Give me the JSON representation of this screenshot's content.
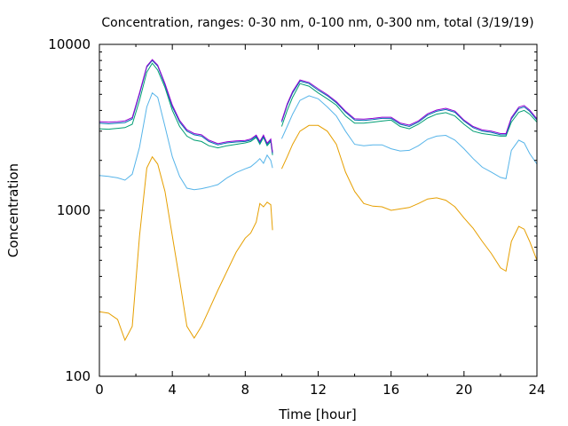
{
  "chart_data": {
    "type": "line",
    "title": "Concentration, ranges: 0-30 nm, 0-100 nm, 0-300 nm, total (3/19/19)",
    "xlabel": "Time [hour]",
    "ylabel": "Concentration",
    "xlim": [
      0,
      24
    ],
    "ylim": [
      100,
      10000
    ],
    "yscale": "log",
    "xticks": [
      "0",
      "4",
      "8",
      "12",
      "16",
      "20",
      "24"
    ],
    "yticks": [
      "100",
      "1000",
      "10000"
    ],
    "grid": false,
    "legend": "none",
    "series": [
      {
        "color": "#e69f00",
        "x": [
          0,
          0.5,
          1,
          1.4,
          1.8,
          2.2,
          2.6,
          2.9,
          3.2,
          3.6,
          4,
          4.4,
          4.8,
          5.2,
          5.6,
          6,
          6.5,
          7,
          7.5,
          8,
          8.3,
          8.6,
          8.8,
          9,
          9.2,
          9.4,
          9.5,
          null,
          10,
          10.3,
          10.6,
          11,
          11.5,
          12,
          12.5,
          13,
          13.5,
          14,
          14.5,
          15,
          15.5,
          16,
          16.5,
          17,
          17.5,
          18,
          18.5,
          19,
          19.5,
          20,
          20.5,
          21,
          21.5,
          22,
          22.3,
          22.6,
          23,
          23.3,
          23.6,
          24
        ],
        "y": [
          245,
          240,
          220,
          165,
          200,
          700,
          1800,
          2100,
          1900,
          1300,
          700,
          380,
          200,
          170,
          200,
          250,
          330,
          430,
          560,
          680,
          730,
          850,
          1100,
          1050,
          1120,
          1080,
          760,
          null,
          1780,
          2100,
          2500,
          3000,
          3250,
          3250,
          3000,
          2500,
          1700,
          1300,
          1100,
          1060,
          1050,
          1000,
          1020,
          1040,
          1100,
          1170,
          1190,
          1150,
          1050,
          900,
          780,
          650,
          550,
          450,
          430,
          650,
          800,
          770,
          650,
          500
        ]
      },
      {
        "color": "#56b4e9",
        "x": [
          0,
          0.5,
          1,
          1.4,
          1.8,
          2.2,
          2.6,
          2.9,
          3.2,
          3.6,
          4,
          4.4,
          4.8,
          5.2,
          5.6,
          6,
          6.5,
          7,
          7.5,
          8,
          8.3,
          8.6,
          8.8,
          9,
          9.2,
          9.4,
          9.5,
          null,
          10,
          10.3,
          10.6,
          11,
          11.5,
          12,
          12.5,
          13,
          13.5,
          14,
          14.5,
          15,
          15.5,
          16,
          16.5,
          17,
          17.5,
          18,
          18.5,
          19,
          19.5,
          20,
          20.5,
          21,
          21.5,
          22,
          22.3,
          22.6,
          23,
          23.3,
          23.6,
          24
        ],
        "y": [
          1620,
          1600,
          1570,
          1520,
          1650,
          2400,
          4200,
          5100,
          4800,
          3200,
          2100,
          1600,
          1360,
          1330,
          1350,
          1380,
          1430,
          1570,
          1690,
          1780,
          1830,
          1950,
          2050,
          1920,
          2150,
          2000,
          1800,
          null,
          2700,
          3200,
          3800,
          4600,
          4900,
          4700,
          4200,
          3700,
          3000,
          2500,
          2450,
          2480,
          2480,
          2350,
          2280,
          2300,
          2450,
          2680,
          2800,
          2830,
          2650,
          2350,
          2050,
          1820,
          1700,
          1580,
          1550,
          2300,
          2650,
          2550,
          2200,
          1900
        ]
      },
      {
        "color": "#009e73",
        "x": [
          0,
          0.5,
          1,
          1.4,
          1.8,
          2.2,
          2.6,
          2.9,
          3.2,
          3.6,
          4,
          4.4,
          4.8,
          5.2,
          5.6,
          6,
          6.5,
          7,
          7.5,
          8,
          8.3,
          8.6,
          8.8,
          9,
          9.2,
          9.4,
          9.5,
          null,
          10,
          10.3,
          10.6,
          11,
          11.5,
          12,
          12.5,
          13,
          13.5,
          14,
          14.5,
          15,
          15.5,
          16,
          16.5,
          17,
          17.5,
          18,
          18.5,
          19,
          19.5,
          20,
          20.5,
          21,
          21.5,
          22,
          22.3,
          22.6,
          23,
          23.3,
          23.6,
          24
        ],
        "y": [
          3100,
          3080,
          3120,
          3150,
          3300,
          4600,
          6800,
          7700,
          7000,
          5500,
          4000,
          3200,
          2800,
          2650,
          2600,
          2450,
          2380,
          2450,
          2500,
          2550,
          2600,
          2750,
          2500,
          2750,
          2450,
          2600,
          2150,
          null,
          3200,
          4000,
          4800,
          5800,
          5600,
          5100,
          4700,
          4300,
          3700,
          3350,
          3350,
          3400,
          3450,
          3500,
          3200,
          3100,
          3300,
          3600,
          3800,
          3880,
          3700,
          3300,
          3000,
          2900,
          2850,
          2800,
          2800,
          3400,
          3900,
          4000,
          3800,
          3400
        ]
      },
      {
        "color": "#0072b2",
        "x": [
          0,
          0.5,
          1,
          1.4,
          1.8,
          2.2,
          2.6,
          2.9,
          3.2,
          3.6,
          4,
          4.4,
          4.8,
          5.2,
          5.6,
          6,
          6.5,
          7,
          7.5,
          8,
          8.3,
          8.6,
          8.8,
          9,
          9.2,
          9.4,
          9.5,
          null,
          10,
          10.3,
          10.6,
          11,
          11.5,
          12,
          12.5,
          13,
          13.5,
          14,
          14.5,
          15,
          15.5,
          16,
          16.5,
          17,
          17.5,
          18,
          18.5,
          19,
          19.5,
          20,
          20.5,
          21,
          21.5,
          22,
          22.3,
          22.6,
          23,
          23.3,
          23.6,
          24
        ],
        "y": [
          3350,
          3320,
          3350,
          3380,
          3550,
          5000,
          7300,
          8000,
          7400,
          5700,
          4200,
          3400,
          3000,
          2850,
          2800,
          2600,
          2480,
          2550,
          2580,
          2600,
          2650,
          2800,
          2550,
          2800,
          2500,
          2650,
          2200,
          null,
          3400,
          4300,
          5100,
          6000,
          5800,
          5300,
          4900,
          4450,
          3900,
          3500,
          3480,
          3520,
          3580,
          3580,
          3300,
          3200,
          3400,
          3750,
          3950,
          4050,
          3900,
          3450,
          3150,
          3000,
          2950,
          2850,
          2850,
          3550,
          4100,
          4200,
          3950,
          3500
        ]
      },
      {
        "color": "#9400d3",
        "x": [
          0,
          0.5,
          1,
          1.4,
          1.8,
          2.2,
          2.6,
          2.9,
          3.2,
          3.6,
          4,
          4.4,
          4.8,
          5.2,
          5.6,
          6,
          6.5,
          7,
          7.5,
          8,
          8.3,
          8.6,
          8.8,
          9,
          9.2,
          9.4,
          9.5,
          null,
          10,
          10.3,
          10.6,
          11,
          11.5,
          12,
          12.5,
          13,
          13.5,
          14,
          14.5,
          15,
          15.5,
          16,
          16.5,
          17,
          17.5,
          18,
          18.5,
          19,
          19.5,
          20,
          20.5,
          21,
          21.5,
          22,
          22.3,
          22.6,
          23,
          23.3,
          23.6,
          24
        ],
        "y": [
          3420,
          3400,
          3420,
          3460,
          3620,
          5100,
          7400,
          8100,
          7500,
          5800,
          4300,
          3480,
          3060,
          2900,
          2850,
          2650,
          2520,
          2590,
          2620,
          2640,
          2690,
          2840,
          2600,
          2840,
          2540,
          2690,
          2240,
          null,
          3460,
          4380,
          5200,
          6100,
          5900,
          5400,
          4980,
          4520,
          3960,
          3560,
          3540,
          3580,
          3640,
          3640,
          3360,
          3260,
          3460,
          3820,
          4020,
          4120,
          3960,
          3500,
          3200,
          3050,
          3000,
          2900,
          2900,
          3620,
          4180,
          4280,
          4020,
          3560
        ]
      }
    ]
  }
}
